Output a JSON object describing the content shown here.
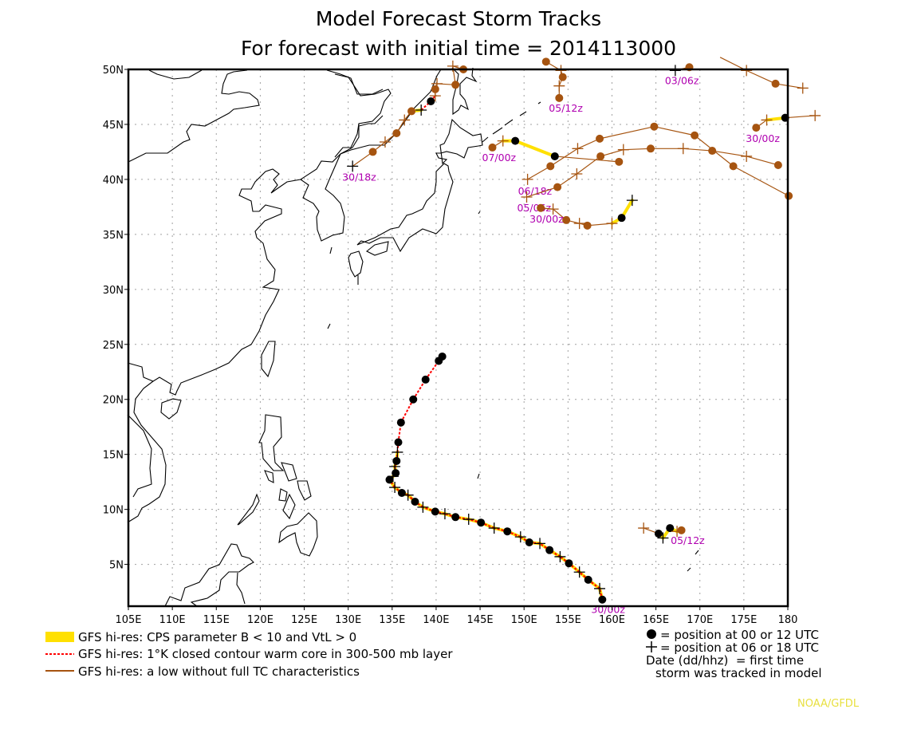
{
  "title": {
    "line1": "Model Forecast Storm Tracks",
    "line2": "For forecast with initial time = 2014113000"
  },
  "map": {
    "lon_range": [
      105,
      180
    ],
    "lat_range": [
      1.2,
      50
    ],
    "grid": true,
    "lat_ticks": [
      "5N",
      "10N",
      "15N",
      "20N",
      "25N",
      "30N",
      "35N",
      "40N",
      "45N",
      "50N"
    ],
    "lat_tick_values": [
      5,
      10,
      15,
      20,
      25,
      30,
      35,
      40,
      45,
      50
    ],
    "lon_ticks": [
      "105E",
      "110E",
      "115E",
      "120E",
      "125E",
      "130E",
      "135E",
      "140E",
      "145E",
      "150E",
      "155E",
      "160E",
      "165E",
      "170E",
      "175E",
      "180"
    ],
    "lon_tick_values": [
      105,
      110,
      115,
      120,
      125,
      130,
      135,
      140,
      145,
      150,
      155,
      160,
      165,
      170,
      175,
      180
    ]
  },
  "colors": {
    "low": "#a65410",
    "cps": "#ffe000",
    "warm": "#ff0000",
    "tc_marker": "#000000",
    "label": "#b000b0",
    "credit": "#e8e040",
    "coast": "#000000"
  },
  "tracks": [
    {
      "label": "30/00z",
      "points": [
        [
          158.9,
          1.8,
          "o",
          "k",
          "CW"
        ],
        [
          158.6,
          2.8,
          "+",
          "k",
          "CW"
        ],
        [
          157.3,
          3.6,
          "o",
          "k",
          "CW"
        ],
        [
          156.3,
          4.3,
          "+",
          "k",
          "CW"
        ],
        [
          155.1,
          5.1,
          "o",
          "k",
          "CW"
        ],
        [
          154.1,
          5.7,
          "+",
          "k",
          "CW"
        ],
        [
          152.9,
          6.3,
          "o",
          "k",
          "CW"
        ],
        [
          151.8,
          6.9,
          "+",
          "k",
          "CW"
        ],
        [
          150.6,
          7.0,
          "o",
          "k",
          "CW"
        ],
        [
          149.6,
          7.5,
          "+",
          "k",
          "CW"
        ],
        [
          148.1,
          8.0,
          "o",
          "k",
          "CW"
        ],
        [
          146.6,
          8.3,
          "+",
          "k",
          "CW"
        ],
        [
          145.1,
          8.8,
          "o",
          "k",
          "CW"
        ],
        [
          143.7,
          9.1,
          "+",
          "k",
          "CW"
        ],
        [
          142.2,
          9.3,
          "o",
          "k",
          "CW"
        ],
        [
          141.0,
          9.6,
          "+",
          "k",
          "CW"
        ],
        [
          139.9,
          9.8,
          "o",
          "k",
          "CW"
        ],
        [
          138.5,
          10.2,
          "+",
          "k",
          "CW"
        ],
        [
          137.6,
          10.7,
          "o",
          "k",
          "CW"
        ],
        [
          136.8,
          11.3,
          "+",
          "k",
          "CW"
        ],
        [
          136.1,
          11.5,
          "o",
          "k",
          "CW"
        ],
        [
          135.3,
          12.0,
          "+",
          "k",
          "CW"
        ],
        [
          134.7,
          12.7,
          "o",
          "k",
          "CW"
        ],
        [
          135.1,
          13.0,
          "+",
          "k",
          "CW"
        ],
        [
          135.4,
          13.3,
          "o",
          "k",
          "CW"
        ],
        [
          135.3,
          13.9,
          "+",
          "k",
          "CW"
        ],
        [
          135.5,
          14.4,
          "o",
          "k",
          "CW"
        ],
        [
          135.6,
          15.2,
          "+",
          "k",
          "W"
        ],
        [
          135.7,
          16.1,
          "o",
          "k",
          "W"
        ],
        [
          136.0,
          17.9,
          "o",
          "k",
          "W"
        ],
        [
          137.4,
          20.0,
          "o",
          "k",
          "W"
        ],
        [
          138.8,
          21.8,
          "o",
          "k",
          "W"
        ],
        [
          140.3,
          23.5,
          "o",
          "k",
          "W"
        ],
        [
          140.7,
          23.9,
          "o",
          "k",
          ""
        ]
      ]
    },
    {
      "label": "30/18z",
      "points": [
        [
          130.5,
          41.2,
          "+",
          "k",
          "L"
        ],
        [
          132.8,
          42.5,
          "o",
          "b",
          "L"
        ],
        [
          134.2,
          43.4,
          "+",
          "b",
          "L"
        ],
        [
          135.5,
          44.2,
          "o",
          "b",
          "L"
        ],
        [
          136.4,
          45.4,
          "+",
          "b",
          "L"
        ],
        [
          137.2,
          46.2,
          "o",
          "b",
          "C"
        ],
        [
          138.3,
          46.3,
          "+",
          "k",
          "W"
        ],
        [
          139.4,
          47.1,
          "o",
          "k",
          "W"
        ],
        [
          139.9,
          47.6,
          "+",
          "b",
          "L"
        ],
        [
          139.9,
          48.2,
          "o",
          "b",
          "L"
        ],
        [
          140.1,
          48.7,
          "+",
          "b",
          "L"
        ],
        [
          142.2,
          48.6,
          "o",
          "b",
          "L"
        ],
        [
          141.9,
          50.3,
          "+",
          "b",
          "L"
        ],
        [
          143.1,
          50.0,
          "o",
          "b",
          ""
        ]
      ]
    },
    {
      "label": "05/12z",
      "points": [
        [
          154.0,
          47.4,
          "o",
          "b",
          "L"
        ],
        [
          154.0,
          48.5,
          "+",
          "b",
          "L"
        ],
        [
          154.4,
          49.3,
          "o",
          "b",
          "L"
        ],
        [
          154.2,
          49.9,
          "+",
          "b",
          "L"
        ],
        [
          152.5,
          50.7,
          "o",
          "b",
          ""
        ]
      ]
    },
    {
      "label": "03/06z",
      "points": [
        [
          167.2,
          49.9,
          "+",
          "k",
          "L"
        ],
        [
          168.8,
          50.2,
          "o",
          "b",
          ""
        ]
      ]
    },
    {
      "label": "",
      "points": [
        [
          172.3,
          51.1,
          "",
          "b",
          "L"
        ],
        [
          175.3,
          49.9,
          "+",
          "b",
          "L"
        ],
        [
          178.6,
          48.7,
          "o",
          "b",
          "L"
        ],
        [
          181.7,
          48.3,
          "+",
          "b",
          ""
        ]
      ]
    },
    {
      "label": "30/00z",
      "points": [
        [
          176.4,
          44.7,
          "o",
          "b",
          "L"
        ],
        [
          177.6,
          45.4,
          "+",
          "b",
          "C"
        ],
        [
          179.7,
          45.6,
          "o",
          "k",
          "L"
        ],
        [
          183.1,
          45.8,
          "+",
          "b",
          ""
        ]
      ]
    },
    {
      "label": "07/00z",
      "points": [
        [
          146.4,
          42.9,
          "o",
          "b",
          "L"
        ],
        [
          147.6,
          43.5,
          "+",
          "b",
          "C"
        ],
        [
          149.0,
          43.5,
          "o",
          "k",
          "C"
        ],
        [
          153.5,
          42.1,
          "o",
          "k",
          "L"
        ],
        [
          160.8,
          41.6,
          "o",
          "b",
          ""
        ]
      ]
    },
    {
      "label": "06/18z",
      "points": [
        [
          150.4,
          40.0,
          "+",
          "b",
          "L"
        ],
        [
          153.0,
          41.2,
          "o",
          "b",
          "L"
        ],
        [
          156.1,
          42.8,
          "+",
          "b",
          "L"
        ],
        [
          158.6,
          43.7,
          "o",
          "b",
          "L"
        ],
        [
          164.8,
          44.8,
          "o",
          "b",
          "L"
        ],
        [
          169.4,
          44.0,
          "o",
          "b",
          "L"
        ],
        [
          173.8,
          41.2,
          "o",
          "b",
          "L"
        ],
        [
          180.1,
          38.5,
          "o",
          "b",
          ""
        ]
      ]
    },
    {
      "label": "05/06z",
      "points": [
        [
          150.3,
          38.4,
          "+",
          "b",
          "L"
        ],
        [
          153.8,
          39.3,
          "o",
          "b",
          "L"
        ],
        [
          156.0,
          40.5,
          "+",
          "b",
          "L"
        ],
        [
          158.7,
          42.1,
          "o",
          "b",
          "L"
        ],
        [
          161.3,
          42.7,
          "+",
          "b",
          "L"
        ],
        [
          164.4,
          42.8,
          "o",
          "b",
          "L"
        ],
        [
          168.1,
          42.8,
          "+",
          "b",
          "L"
        ],
        [
          171.4,
          42.6,
          "o",
          "b",
          "L"
        ],
        [
          175.3,
          42.1,
          "+",
          "b",
          "L"
        ],
        [
          178.9,
          41.3,
          "o",
          "b",
          ""
        ]
      ]
    },
    {
      "label": "30/00z",
      "points": [
        [
          151.9,
          37.4,
          "o",
          "b",
          "L"
        ],
        [
          153.3,
          37.3,
          "+",
          "b",
          "L"
        ],
        [
          154.8,
          36.3,
          "o",
          "b",
          "L"
        ],
        [
          156.3,
          36.0,
          "+",
          "b",
          "L"
        ],
        [
          157.2,
          35.8,
          "o",
          "b",
          "L"
        ],
        [
          160.0,
          36.0,
          "+",
          "b",
          "C"
        ],
        [
          161.1,
          36.5,
          "o",
          "k",
          "C"
        ],
        [
          162.3,
          38.1,
          "+",
          "k",
          ""
        ]
      ]
    },
    {
      "label": "05/12z",
      "points": [
        [
          163.6,
          8.3,
          "+",
          "b",
          "L"
        ],
        [
          165.3,
          7.8,
          "o",
          "k",
          "C"
        ],
        [
          165.8,
          7.4,
          "+",
          "k",
          "C"
        ],
        [
          166.6,
          8.3,
          "o",
          "k",
          "C"
        ],
        [
          167.4,
          8.0,
          "+",
          "b",
          "C"
        ],
        [
          167.9,
          8.1,
          "o",
          "b",
          ""
        ]
      ]
    }
  ],
  "legend": {
    "cps": "GFS hi-res: CPS parameter B < 10 and VtL > 0",
    "warm": "GFS hi-res: 1°K closed contour warm core in 300-500 mb layer",
    "low": "GFS hi-res: a low without full TC characteristics",
    "dot_note": "= position at 00 or 12 UTC",
    "plus_note": "= position at 06 or 18 UTC",
    "date_note1": "Date (dd/hhz)  = first time",
    "date_note2": "storm was tracked in model"
  },
  "credit": "NOAA/GFDL"
}
